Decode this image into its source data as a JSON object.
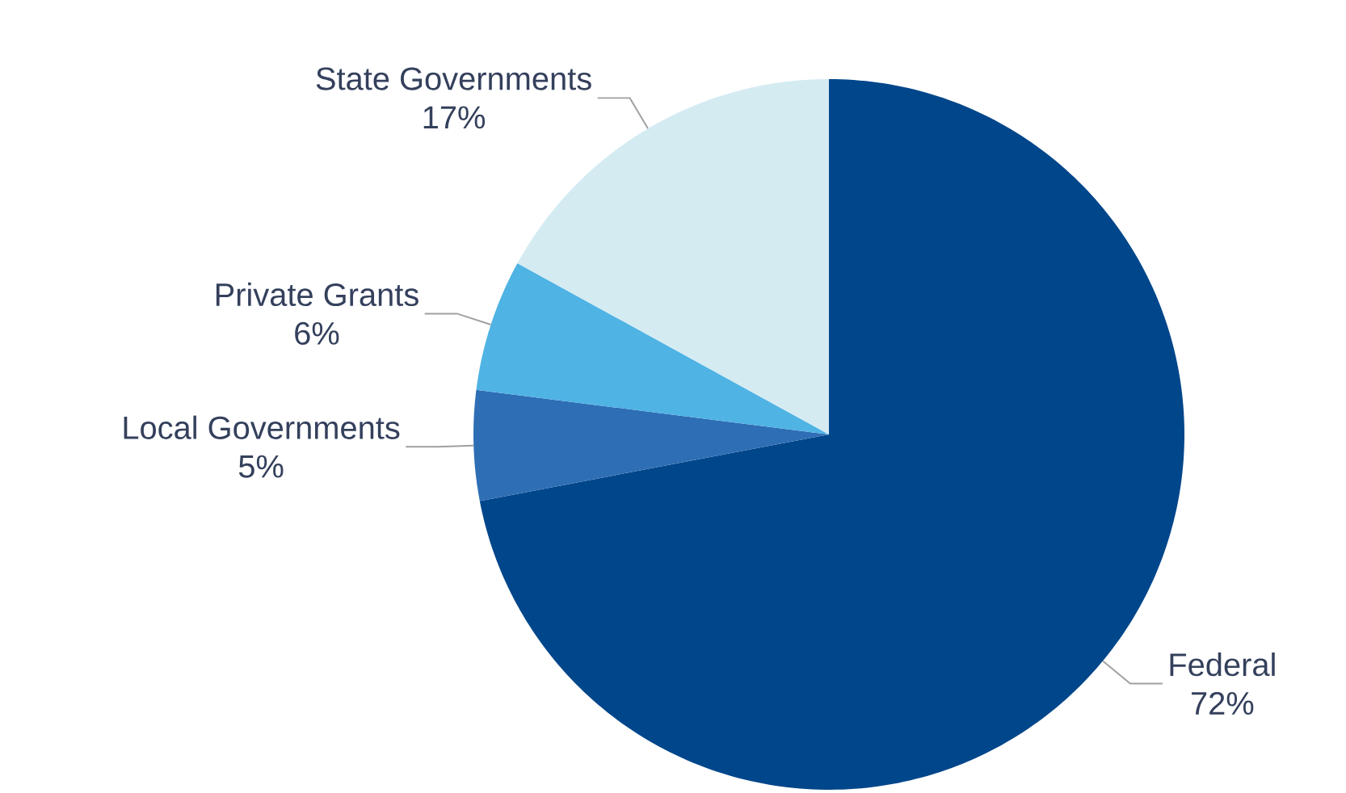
{
  "chart_data": {
    "type": "pie",
    "categories": [
      "Federal",
      "Local Governments",
      "Private Grants",
      "State Governments"
    ],
    "values": [
      72,
      5,
      6,
      17
    ],
    "value_labels": [
      "72%",
      "5%",
      "6%",
      "17%"
    ],
    "colors": [
      "#00468b",
      "#2e6eb5",
      "#4fb3e4",
      "#d4ebf2"
    ]
  }
}
